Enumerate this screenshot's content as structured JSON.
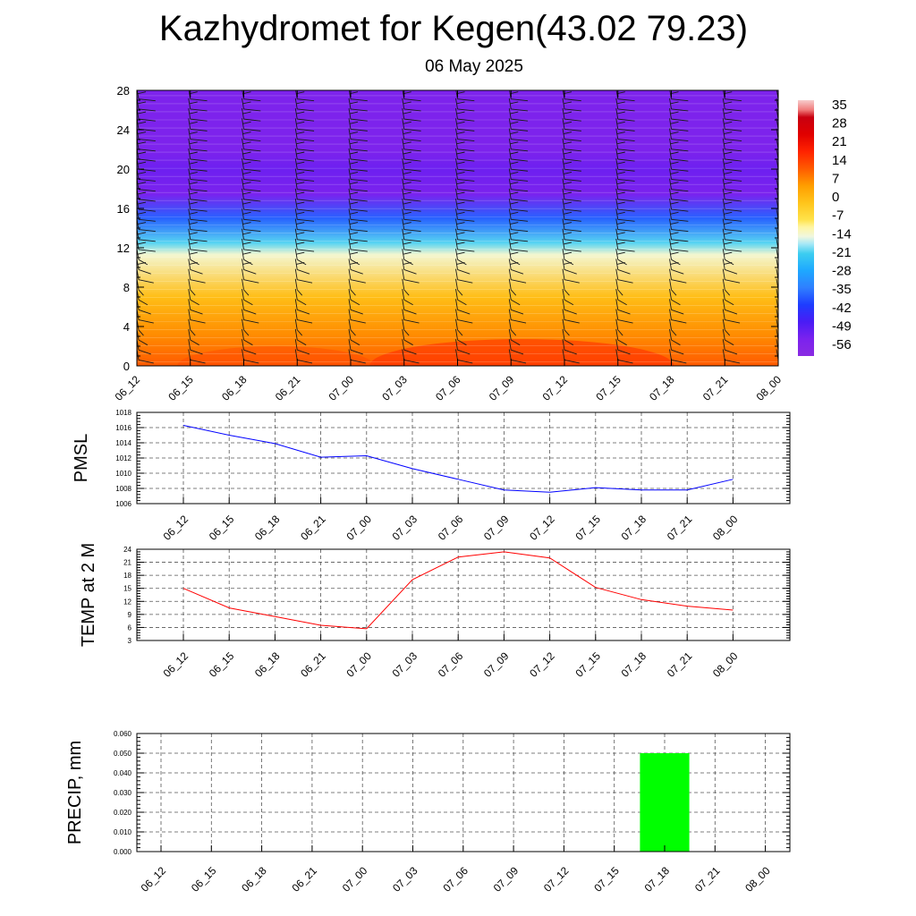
{
  "title": "Kazhydromet for Kegen(43.02 79.23)",
  "subtitle": "06 May 2025",
  "time_labels": [
    "06_12",
    "06_15",
    "06_18",
    "06_21",
    "07_00",
    "07_03",
    "07_06",
    "07_09",
    "07_12",
    "07_15",
    "07_18",
    "07_21",
    "08_00"
  ],
  "chart_data": [
    {
      "type": "heatmap",
      "name": "temperature-wind-cross-section",
      "yticks": [
        0,
        4,
        8,
        12,
        16,
        20,
        24,
        28
      ],
      "ylim": [
        0,
        28
      ],
      "colorbar_labels": [
        "35",
        "28",
        "21",
        "14",
        "7",
        "0",
        "-7",
        "-14",
        "-21",
        "-28",
        "-35",
        "-42",
        "-49",
        "-56"
      ],
      "colorbar_range": [
        -63,
        42
      ],
      "layers": [
        {
          "level": 0,
          "temp": 14
        },
        {
          "level": 3,
          "temp": 9
        },
        {
          "level": 7,
          "temp": 1
        },
        {
          "level": 11.3,
          "temp": -13
        },
        {
          "level": 12.5,
          "temp": -20
        },
        {
          "level": 15,
          "temp": -38
        },
        {
          "level": 17.5,
          "temp": -56
        },
        {
          "level": 20,
          "temp": -54
        },
        {
          "level": 22,
          "temp": -57
        },
        {
          "level": 28,
          "temp": -57
        }
      ],
      "wind_barbs": "yes"
    },
    {
      "type": "line",
      "name": "pmsl",
      "ylabel": "PMSL",
      "ylim": [
        1006,
        1018
      ],
      "yticks": [
        1006,
        1008,
        1010,
        1012,
        1014,
        1016,
        1018
      ],
      "color": "#0000ff",
      "values": [
        1016.3,
        1015.0,
        1013.9,
        1012.1,
        1012.3,
        1010.6,
        1009.2,
        1007.8,
        1007.5,
        1008.1,
        1007.8,
        1007.8,
        1009.2
      ]
    },
    {
      "type": "line",
      "name": "temp-2m",
      "ylabel": "TEMP at 2 M",
      "ylim": [
        3,
        24
      ],
      "yticks": [
        3,
        6,
        9,
        12,
        15,
        18,
        21,
        24
      ],
      "color": "#ff0000",
      "values": [
        15.0,
        10.5,
        8.5,
        6.5,
        5.7,
        17.0,
        22.2,
        23.4,
        22.0,
        15.2,
        12.4,
        10.9,
        10.0
      ]
    },
    {
      "type": "bar",
      "name": "precip",
      "ylabel": "PRECIP, mm",
      "ylim": [
        0,
        0.06
      ],
      "yticks": [
        "0.000",
        "0.010",
        "0.020",
        "0.030",
        "0.040",
        "0.050",
        "0.060"
      ],
      "color": "#00ff00",
      "values": [
        0,
        0,
        0,
        0,
        0,
        0,
        0,
        0,
        0,
        0,
        0.05,
        0,
        0
      ]
    }
  ]
}
